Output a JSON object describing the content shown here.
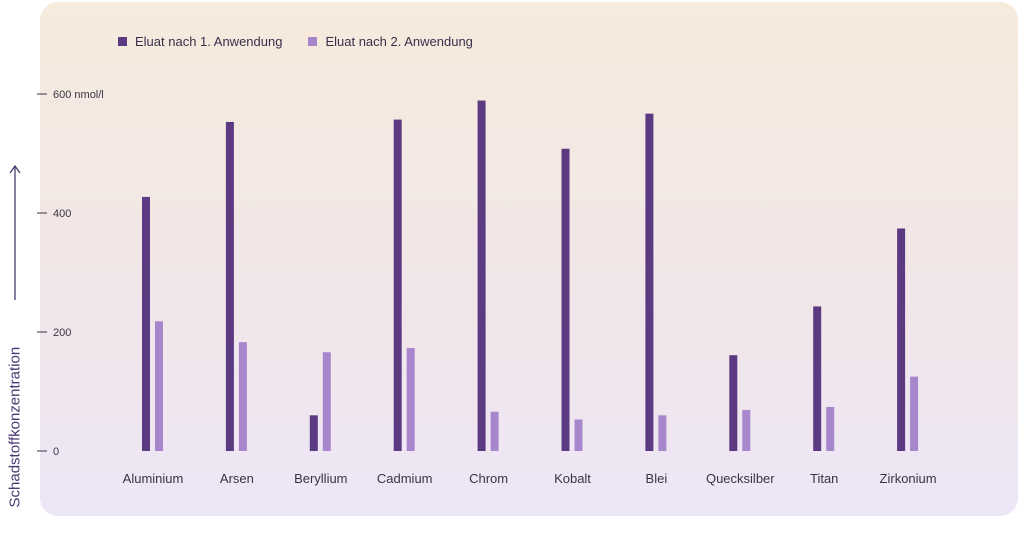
{
  "chart_data": {
    "type": "bar",
    "categories": [
      "Aluminium",
      "Arsen",
      "Beryllium",
      "Cadmium",
      "Chrom",
      "Kobalt",
      "Blei",
      "Quecksilber",
      "Titan",
      "Zirkonium"
    ],
    "series": [
      {
        "name": "Eluat nach 1. Anwendung",
        "color": "#5b3a82",
        "values": [
          427,
          553,
          60,
          557,
          589,
          508,
          567,
          161,
          243,
          374
        ]
      },
      {
        "name": "Eluat nach 2. Anwendung",
        "color": "#a886cc",
        "values": [
          218,
          183,
          166,
          173,
          66,
          53,
          60,
          69,
          74,
          125
        ]
      }
    ],
    "ylabel": "Schadstoffkonzentration",
    "yticks": [
      "0",
      "200",
      "400",
      "600 nmol/l"
    ],
    "ytick_values": [
      0,
      200,
      400,
      600
    ],
    "ylim": [
      0,
      600
    ],
    "legend_position": "top-left",
    "grid": false
  }
}
